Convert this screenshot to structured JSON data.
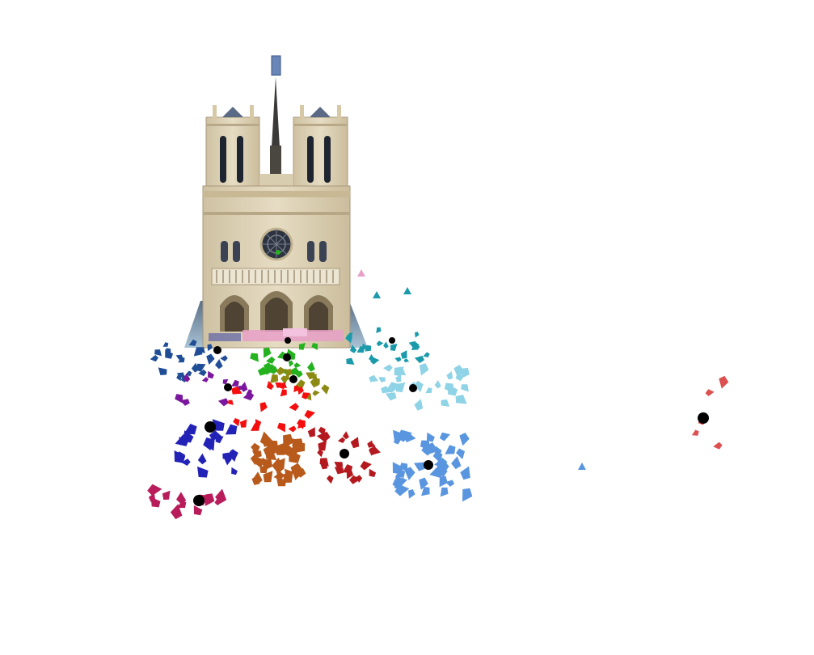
{
  "scene": {
    "subject": "cathedral-facade-point-cloud",
    "background": "#ffffff"
  },
  "clusters": [
    {
      "name": "navy",
      "color": "#1f4e96"
    },
    {
      "name": "teal",
      "color": "#1a9aab"
    },
    {
      "name": "green",
      "color": "#24b21f"
    },
    {
      "name": "olive",
      "color": "#8c8a12"
    },
    {
      "name": "purple",
      "color": "#7a179e"
    },
    {
      "name": "light-cyan",
      "color": "#8fd3e6"
    },
    {
      "name": "red",
      "color": "#f40e0e"
    },
    {
      "name": "royal-blue",
      "color": "#2222b6"
    },
    {
      "name": "orange-brown",
      "color": "#b75a1c"
    },
    {
      "name": "dark-red",
      "color": "#b3191f"
    },
    {
      "name": "cornflower",
      "color": "#5a96e0"
    },
    {
      "name": "magenta",
      "color": "#b81c5a"
    },
    {
      "name": "salmon",
      "color": "#dc5050"
    },
    {
      "name": "pink",
      "color": "#e8a0c8"
    }
  ],
  "centroid_color": "#000000"
}
